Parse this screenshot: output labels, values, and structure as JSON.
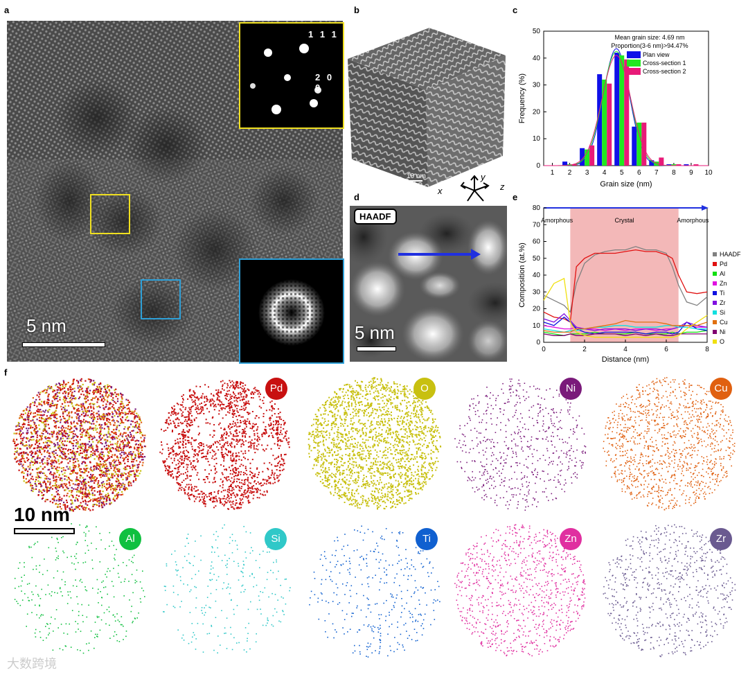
{
  "panel_labels": {
    "a": "a",
    "b": "b",
    "c": "c",
    "d": "d",
    "e": "e",
    "f": "f"
  },
  "panel_a": {
    "scale_bar": "5 nm",
    "diffraction_top": "1 1 1",
    "diffraction_mid": "2 0 0",
    "frame_yellow": "#f0e020",
    "frame_blue": "#2ea0d8"
  },
  "panel_b": {
    "scale_bar": "10 nm",
    "axis_x": "x",
    "axis_y": "y",
    "axis_z": "z"
  },
  "panel_d": {
    "badge": "HAADF",
    "scale_bar": "5 nm",
    "arrow_color": "#2030e0"
  },
  "panel_f": {
    "scale_bar": "10 nm",
    "elements": [
      {
        "label": "Pd",
        "color": "#c81010"
      },
      {
        "label": "O",
        "color": "#c8c010"
      },
      {
        "label": "Ni",
        "color": "#7a1a7a"
      },
      {
        "label": "Cu",
        "color": "#e06010"
      },
      {
        "label": "Al",
        "color": "#10c040"
      },
      {
        "label": "Si",
        "color": "#30c8c8"
      },
      {
        "label": "Ti",
        "color": "#1060d0"
      },
      {
        "label": "Zn",
        "color": "#e030a0"
      },
      {
        "label": "Zr",
        "color": "#6a5a90"
      }
    ]
  },
  "watermark": "大数跨境",
  "chart_data": [
    {
      "type": "bar",
      "panel": "c",
      "xlabel": "Grain size (nm)",
      "ylabel": "Frequency (%)",
      "xlim": [
        0.5,
        10
      ],
      "ylim": [
        0,
        50
      ],
      "xticks": [
        "1",
        "2",
        "3",
        "4",
        "5",
        "6",
        "7",
        "8",
        "9",
        "10"
      ],
      "yticks": [
        "0",
        "10",
        "20",
        "30",
        "40",
        "50"
      ],
      "annotation_1": "Mean grain size: 4.69 nm",
      "annotation_2": "Proportion(3-6 nm)>94.47%",
      "legend_position": "top-right",
      "categories": [
        1,
        2,
        3,
        4,
        5,
        6,
        7,
        8,
        9,
        10
      ],
      "series": [
        {
          "name": "Plan view",
          "color": "#1010e8",
          "values": [
            0,
            1.5,
            6.5,
            34,
            42,
            14.5,
            2,
            0.5,
            0.5,
            0
          ]
        },
        {
          "name": "Cross-section 1",
          "color": "#20e820",
          "values": [
            0,
            0.5,
            6,
            32,
            41,
            16,
            1.5,
            0.5,
            0,
            0
          ]
        },
        {
          "name": "Cross-section 2",
          "color": "#e81a78",
          "values": [
            0,
            0.5,
            7.5,
            30.5,
            39.5,
            16,
            3,
            0.5,
            0.5,
            0
          ]
        }
      ]
    },
    {
      "type": "line",
      "panel": "e",
      "xlabel": "Distance (nm)",
      "ylabel": "Composition (at.%)",
      "xlim": [
        0,
        8
      ],
      "ylim": [
        0,
        80
      ],
      "xticks": [
        "0",
        "2",
        "4",
        "6",
        "8"
      ],
      "yticks": [
        "0",
        "10",
        "20",
        "30",
        "40",
        "50",
        "60",
        "70",
        "80"
      ],
      "region_labels": [
        "Amorphous",
        "Crystal",
        "Amorphous"
      ],
      "crystal_region": [
        1.3,
        6.6
      ],
      "legend_position": "right",
      "x": [
        0,
        0.5,
        1,
        1.3,
        1.6,
        2,
        2.5,
        3,
        3.5,
        4,
        4.5,
        5,
        5.5,
        6,
        6.3,
        6.6,
        7,
        7.5,
        8
      ],
      "series": [
        {
          "name": "HAADF",
          "color": "#808080",
          "values": [
            28,
            25,
            22,
            18,
            35,
            47,
            52,
            54,
            55,
            55,
            57,
            55,
            55,
            53,
            45,
            34,
            24,
            22,
            27
          ]
        },
        {
          "name": "Pd",
          "color": "#e01010",
          "values": [
            18,
            15,
            14,
            12,
            45,
            50,
            53,
            53,
            53,
            54,
            55,
            54,
            54,
            52,
            50,
            40,
            30,
            29,
            30
          ]
        },
        {
          "name": "Al",
          "color": "#10e010",
          "values": [
            6,
            5,
            4,
            5,
            5,
            5,
            6,
            5,
            5,
            5,
            6,
            5,
            5,
            5,
            6,
            5,
            6,
            6,
            7
          ]
        },
        {
          "name": "Zn",
          "color": "#e010e0",
          "values": [
            10,
            9,
            8,
            8,
            9,
            8,
            8,
            7,
            8,
            7,
            8,
            8,
            7,
            8,
            8,
            9,
            10,
            9,
            9
          ]
        },
        {
          "name": "Ti",
          "color": "#1010e0",
          "values": [
            12,
            10,
            15,
            12,
            8,
            6,
            5,
            6,
            6,
            6,
            6,
            5,
            6,
            6,
            5,
            6,
            12,
            8,
            7
          ]
        },
        {
          "name": "Zr",
          "color": "#8010e0",
          "values": [
            14,
            12,
            17,
            13,
            9,
            8,
            7,
            8,
            8,
            8,
            7,
            8,
            8,
            7,
            8,
            9,
            12,
            10,
            9
          ]
        },
        {
          "name": "Si",
          "color": "#10e0e0",
          "values": [
            8,
            7,
            6,
            7,
            7,
            8,
            9,
            9,
            10,
            10,
            9,
            9,
            9,
            10,
            10,
            9,
            9,
            8,
            8
          ]
        },
        {
          "name": "Cu",
          "color": "#e07010",
          "values": [
            7,
            6,
            6,
            6,
            8,
            8,
            9,
            10,
            11,
            13,
            12,
            12,
            12,
            11,
            10,
            10,
            10,
            10,
            12
          ]
        },
        {
          "name": "Ni",
          "color": "#800070",
          "values": [
            5,
            4,
            4,
            5,
            4,
            4,
            5,
            5,
            5,
            4,
            5,
            4,
            5,
            4,
            4,
            5,
            5,
            5,
            5
          ]
        },
        {
          "name": "O",
          "color": "#f0e010",
          "values": [
            25,
            35,
            38,
            12,
            6,
            4,
            3,
            3,
            3,
            3,
            3,
            3,
            3,
            3,
            3,
            4,
            8,
            12,
            16
          ]
        }
      ]
    }
  ]
}
